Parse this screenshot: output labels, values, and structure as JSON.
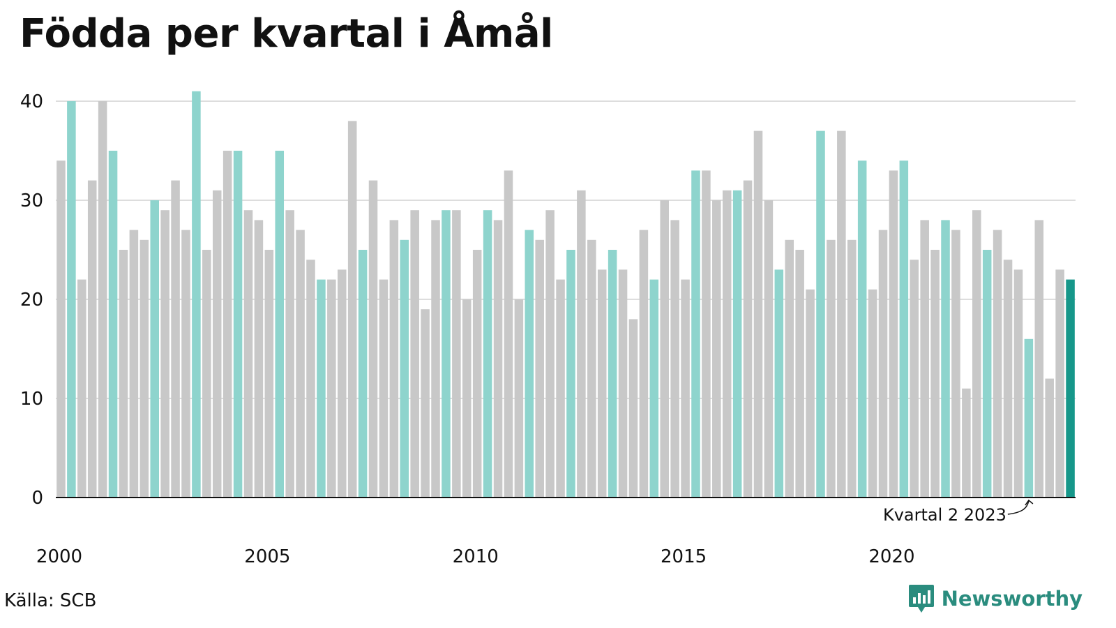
{
  "title": "Födda per kvartal i Åmål",
  "source": "Källa: SCB",
  "brand": {
    "name": "Newsworthy",
    "color": "#2a8c7e",
    "icon": "bar-chart-speech-icon"
  },
  "colors": {
    "regular": "#c8c8c8",
    "quarter2": "#8ed4cd",
    "latest": "#16978a",
    "gridline": "#dddddd",
    "axis": "#111111"
  },
  "chart_data": {
    "type": "bar",
    "title": "Födda per kvartal i Åmål",
    "xlabel": "",
    "ylabel": "",
    "ylim": [
      0,
      42
    ],
    "yticks": [
      0,
      10,
      20,
      30,
      40
    ],
    "grid": true,
    "x_tick_labels": [
      "2000",
      "2005",
      "2010",
      "2015",
      "2020"
    ],
    "x_start_year": 2000,
    "highlight": "quarter 2 of each year",
    "annotation": {
      "text": "Kvartal 2 2023",
      "year": 2023,
      "quarter": 2
    },
    "quarters": [
      {
        "year": 2000,
        "q": 1,
        "value": 34
      },
      {
        "year": 2000,
        "q": 2,
        "value": 40
      },
      {
        "year": 2000,
        "q": 3,
        "value": 22
      },
      {
        "year": 2000,
        "q": 4,
        "value": 32
      },
      {
        "year": 2001,
        "q": 1,
        "value": 40
      },
      {
        "year": 2001,
        "q": 2,
        "value": 35
      },
      {
        "year": 2001,
        "q": 3,
        "value": 25
      },
      {
        "year": 2001,
        "q": 4,
        "value": 27
      },
      {
        "year": 2002,
        "q": 1,
        "value": 26
      },
      {
        "year": 2002,
        "q": 2,
        "value": 30
      },
      {
        "year": 2002,
        "q": 3,
        "value": 29
      },
      {
        "year": 2002,
        "q": 4,
        "value": 32
      },
      {
        "year": 2003,
        "q": 1,
        "value": 27
      },
      {
        "year": 2003,
        "q": 2,
        "value": 41
      },
      {
        "year": 2003,
        "q": 3,
        "value": 25
      },
      {
        "year": 2003,
        "q": 4,
        "value": 31
      },
      {
        "year": 2004,
        "q": 1,
        "value": 35
      },
      {
        "year": 2004,
        "q": 2,
        "value": 35
      },
      {
        "year": 2004,
        "q": 3,
        "value": 29
      },
      {
        "year": 2004,
        "q": 4,
        "value": 28
      },
      {
        "year": 2005,
        "q": 1,
        "value": 25
      },
      {
        "year": 2005,
        "q": 2,
        "value": 35
      },
      {
        "year": 2005,
        "q": 3,
        "value": 29
      },
      {
        "year": 2005,
        "q": 4,
        "value": 27
      },
      {
        "year": 2006,
        "q": 1,
        "value": 24
      },
      {
        "year": 2006,
        "q": 2,
        "value": 22
      },
      {
        "year": 2006,
        "q": 3,
        "value": 22
      },
      {
        "year": 2006,
        "q": 4,
        "value": 23
      },
      {
        "year": 2007,
        "q": 1,
        "value": 38
      },
      {
        "year": 2007,
        "q": 2,
        "value": 25
      },
      {
        "year": 2007,
        "q": 3,
        "value": 32
      },
      {
        "year": 2007,
        "q": 4,
        "value": 22
      },
      {
        "year": 2008,
        "q": 1,
        "value": 28
      },
      {
        "year": 2008,
        "q": 2,
        "value": 26
      },
      {
        "year": 2008,
        "q": 3,
        "value": 29
      },
      {
        "year": 2008,
        "q": 4,
        "value": 19
      },
      {
        "year": 2009,
        "q": 1,
        "value": 28
      },
      {
        "year": 2009,
        "q": 2,
        "value": 29
      },
      {
        "year": 2009,
        "q": 3,
        "value": 29
      },
      {
        "year": 2009,
        "q": 4,
        "value": 20
      },
      {
        "year": 2010,
        "q": 1,
        "value": 25
      },
      {
        "year": 2010,
        "q": 2,
        "value": 29
      },
      {
        "year": 2010,
        "q": 3,
        "value": 28
      },
      {
        "year": 2010,
        "q": 4,
        "value": 33
      },
      {
        "year": 2011,
        "q": 1,
        "value": 20
      },
      {
        "year": 2011,
        "q": 2,
        "value": 27
      },
      {
        "year": 2011,
        "q": 3,
        "value": 26
      },
      {
        "year": 2011,
        "q": 4,
        "value": 29
      },
      {
        "year": 2012,
        "q": 1,
        "value": 22
      },
      {
        "year": 2012,
        "q": 2,
        "value": 25
      },
      {
        "year": 2012,
        "q": 3,
        "value": 31
      },
      {
        "year": 2012,
        "q": 4,
        "value": 26
      },
      {
        "year": 2013,
        "q": 1,
        "value": 23
      },
      {
        "year": 2013,
        "q": 2,
        "value": 25
      },
      {
        "year": 2013,
        "q": 3,
        "value": 23
      },
      {
        "year": 2013,
        "q": 4,
        "value": 18
      },
      {
        "year": 2014,
        "q": 1,
        "value": 27
      },
      {
        "year": 2014,
        "q": 2,
        "value": 22
      },
      {
        "year": 2014,
        "q": 3,
        "value": 30
      },
      {
        "year": 2014,
        "q": 4,
        "value": 28
      },
      {
        "year": 2015,
        "q": 1,
        "value": 22
      },
      {
        "year": 2015,
        "q": 2,
        "value": 33
      },
      {
        "year": 2015,
        "q": 3,
        "value": 33
      },
      {
        "year": 2015,
        "q": 4,
        "value": 30
      },
      {
        "year": 2016,
        "q": 1,
        "value": 31
      },
      {
        "year": 2016,
        "q": 2,
        "value": 31
      },
      {
        "year": 2016,
        "q": 3,
        "value": 32
      },
      {
        "year": 2016,
        "q": 4,
        "value": 37
      },
      {
        "year": 2017,
        "q": 1,
        "value": 30
      },
      {
        "year": 2017,
        "q": 2,
        "value": 23
      },
      {
        "year": 2017,
        "q": 3,
        "value": 26
      },
      {
        "year": 2017,
        "q": 4,
        "value": 25
      },
      {
        "year": 2018,
        "q": 1,
        "value": 21
      },
      {
        "year": 2018,
        "q": 2,
        "value": 37
      },
      {
        "year": 2018,
        "q": 3,
        "value": 26
      },
      {
        "year": 2018,
        "q": 4,
        "value": 37
      },
      {
        "year": 2019,
        "q": 1,
        "value": 26
      },
      {
        "year": 2019,
        "q": 2,
        "value": 34
      },
      {
        "year": 2019,
        "q": 3,
        "value": 21
      },
      {
        "year": 2019,
        "q": 4,
        "value": 27
      },
      {
        "year": 2020,
        "q": 1,
        "value": 33
      },
      {
        "year": 2020,
        "q": 2,
        "value": 34
      },
      {
        "year": 2020,
        "q": 3,
        "value": 24
      },
      {
        "year": 2020,
        "q": 4,
        "value": 28
      },
      {
        "year": 2021,
        "q": 1,
        "value": 25
      },
      {
        "year": 2021,
        "q": 2,
        "value": 28
      },
      {
        "year": 2021,
        "q": 3,
        "value": 27
      },
      {
        "year": 2021,
        "q": 4,
        "value": 11
      },
      {
        "year": 2022,
        "q": 1,
        "value": 29
      },
      {
        "year": 2022,
        "q": 2,
        "value": 25
      },
      {
        "year": 2022,
        "q": 3,
        "value": 27
      },
      {
        "year": 2022,
        "q": 4,
        "value": 24
      },
      {
        "year": 2023,
        "q": 1,
        "value": 23
      },
      {
        "year": 2023,
        "q": 2,
        "value": 16
      },
      {
        "year": 2023,
        "q": 3,
        "value": 28
      },
      {
        "year": 2023,
        "q": 4,
        "value": 12
      },
      {
        "year": 2024,
        "q": 1,
        "value": 23
      },
      {
        "year": 2024,
        "q": 2,
        "value": 22
      }
    ]
  }
}
